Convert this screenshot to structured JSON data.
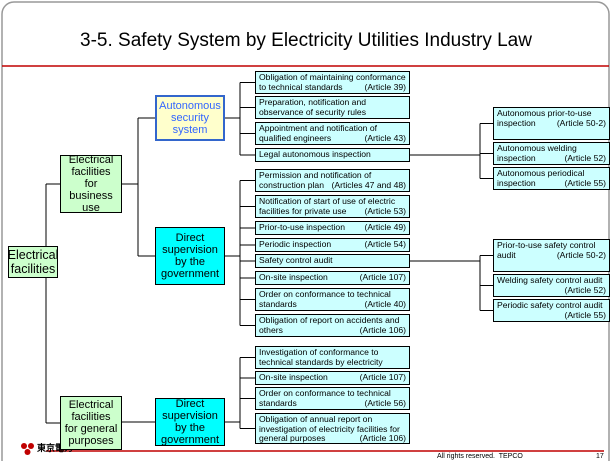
{
  "header": {
    "title": "3-5. Safety System by Electricity Utilities Industry Law"
  },
  "root": {
    "label": "Electrical facilities"
  },
  "groups": [
    {
      "label": "Electrical facilities for business use",
      "branches": [
        {
          "label": "Autonomous security system",
          "items": [
            {
              "text": "Obligation of maintaining conformance to technical standards",
              "article": "(Article 39)"
            },
            {
              "text": "Preparation, notification and observance of security rules",
              "article": "(Article 42)"
            },
            {
              "text": "Appointment and notification of qualified engineers",
              "article": "(Article 43)"
            },
            {
              "text": "Legal autonomous inspection",
              "sub": [
                {
                  "text": "Autonomous prior-to-use inspection",
                  "article": "(Article 50-2)"
                },
                {
                  "text": "Autonomous welding inspection",
                  "article": "(Article 52)"
                },
                {
                  "text": "Autonomous periodical inspection",
                  "article": "(Article 55)"
                }
              ]
            }
          ]
        },
        {
          "label": "Direct supervision by the government",
          "items": [
            {
              "text": "Permission and notification of construction plan",
              "article": "(Articles 47 and 48)"
            },
            {
              "text": "Notification of start of use of electric facilities for private use",
              "article": "(Article 53)"
            },
            {
              "text": "Prior-to-use inspection",
              "article": "(Article 49)"
            },
            {
              "text": "Periodic inspection",
              "article": "(Article 54)"
            },
            {
              "text": "Safety control audit",
              "sub": [
                {
                  "text": "Prior-to-use safety control audit",
                  "article": "(Article 50-2)"
                },
                {
                  "text": "Welding safety control audit",
                  "article": "(Article 52)"
                },
                {
                  "text": "Periodic safety control audit",
                  "article": "(Article 55)"
                }
              ]
            },
            {
              "text": "On-site inspection",
              "article": "(Article 107)"
            },
            {
              "text": "Order on conformance to technical standards",
              "article": "(Article 40)"
            },
            {
              "text": "Obligation of report on accidents and others",
              "article": "(Article 106)"
            }
          ]
        }
      ]
    },
    {
      "label": "Electrical facilities for general purposes",
      "branches": [
        {
          "label": "Direct supervision by the government",
          "items": [
            {
              "text": "Investigation of conformance to technical standards by electricity supplier",
              "article": "(Article 57)"
            },
            {
              "text": "On-site inspection",
              "article": "(Article 107)"
            },
            {
              "text": "Order on conformance to technical standards",
              "article": "(Article 56)"
            },
            {
              "text": "Obligation of annual report on investigation of electricity facilities for general purposes",
              "article": "(Article 106)"
            }
          ]
        }
      ]
    }
  ],
  "footer": {
    "logo": "東京電力",
    "copyright": "All rights reserved.  TEPCO",
    "page": "17"
  }
}
